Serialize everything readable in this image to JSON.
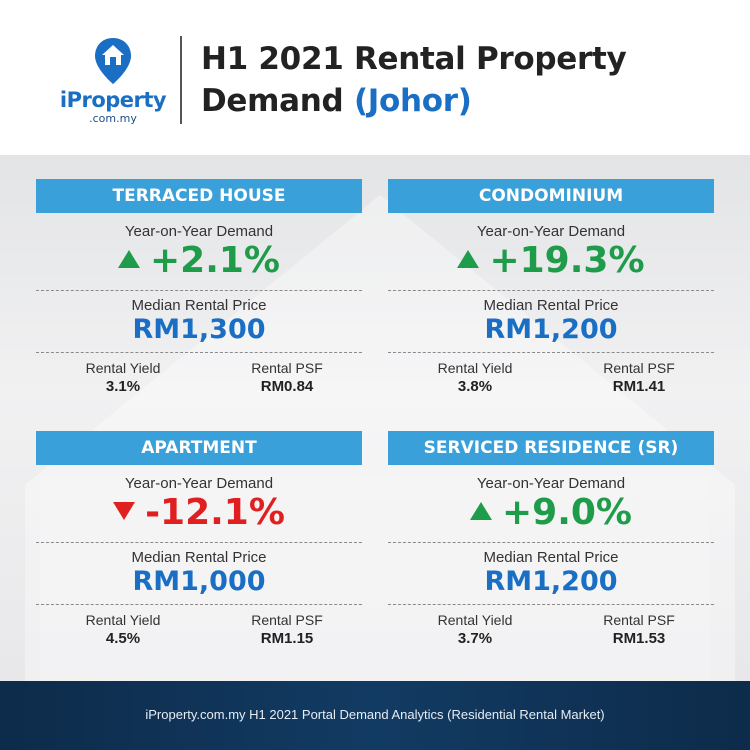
{
  "brand": {
    "name": "iProperty",
    "domain": ".com.my",
    "logo_icon": "house-pin-icon",
    "color": "#1a6fc4"
  },
  "title": {
    "line1": "H1 2021 Rental Property",
    "line2_prefix": "Demand ",
    "line2_highlight": "(Johor)"
  },
  "labels": {
    "yoy": "Year-on-Year Demand",
    "median": "Median Rental Price",
    "yield": "Rental Yield",
    "psf": "Rental PSF"
  },
  "cards": [
    {
      "name": "TERRACED HOUSE",
      "yoy": "+2.1%",
      "trend": "up",
      "median": "RM1,300",
      "yield": "3.1%",
      "psf": "RM0.84"
    },
    {
      "name": "CONDOMINIUM",
      "yoy": "+19.3%",
      "trend": "up",
      "median": "RM1,200",
      "yield": "3.8%",
      "psf": "RM1.41"
    },
    {
      "name": "APARTMENT",
      "yoy": "-12.1%",
      "trend": "down",
      "median": "RM1,000",
      "yield": "4.5%",
      "psf": "RM1.15"
    },
    {
      "name": "SERVICED RESIDENCE (SR)",
      "yoy": "+9.0%",
      "trend": "up",
      "median": "RM1,200",
      "yield": "3.7%",
      "psf": "RM1.53"
    }
  ],
  "colors": {
    "header_bar": "#3aa0da",
    "up": "#1e9c4a",
    "down": "#e02020",
    "price": "#1a6fc4",
    "footer": "#0d2b4a"
  },
  "footer": {
    "text": "iProperty.com.my H1 2021 Portal Demand Analytics (Residential Rental Market)"
  }
}
